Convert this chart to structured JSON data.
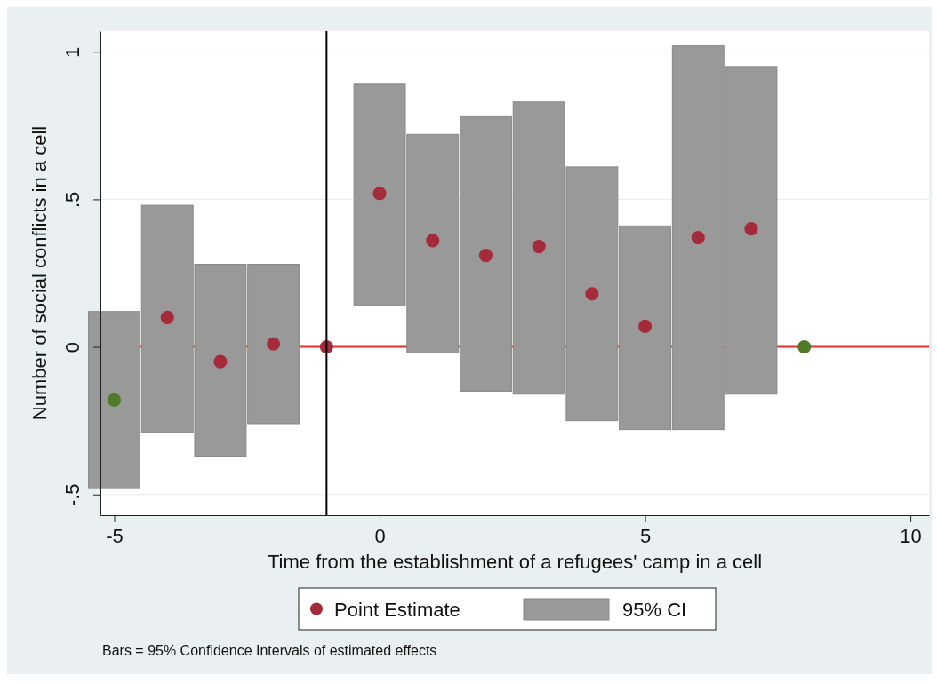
{
  "chart_data": {
    "type": "bar",
    "xlabel": "Time from the establishment of a refugees' camp in a cell",
    "ylabel": "Number of social conflicts in a cell",
    "xlim": [
      -5.26,
      10.35
    ],
    "xticks": [
      -5,
      0,
      5,
      10
    ],
    "ylim": [
      -0.57,
      1.07
    ],
    "yticks": [
      {
        "value": -0.5,
        "label": "-.5"
      },
      0,
      {
        "value": 0.5,
        "label": ".5"
      },
      1
    ],
    "grid": "y",
    "legend": "bottom",
    "marker": "circle",
    "series": [
      {
        "name": "95% CI",
        "color": "#999999",
        "x": [
          -5,
          -4,
          -3,
          -2,
          0,
          1,
          2,
          3,
          4,
          5,
          6,
          7
        ],
        "base": [
          -0.48,
          -0.29,
          -0.37,
          -0.26,
          0.14,
          -0.02,
          -0.15,
          -0.16,
          -0.25,
          -0.28,
          -0.28,
          -0.16
        ],
        "values": [
          0.6,
          0.77,
          0.65,
          0.54,
          0.75,
          0.74,
          0.93,
          0.99,
          0.86,
          0.69,
          1.3,
          1.11
        ]
      },
      {
        "type": "scatter",
        "name": "Point Estimate",
        "color": "#a52a3a",
        "x": [
          -5,
          -4,
          -3,
          -2,
          -1,
          0,
          1,
          2,
          3,
          4,
          5,
          6,
          7,
          8
        ],
        "values": [
          -0.18,
          0.1,
          -0.05,
          0.01,
          0,
          0.52,
          0.36,
          0.31,
          0.34,
          0.18,
          0.07,
          0.37,
          0.4,
          0
        ],
        "colors": [
          "#4f7a28",
          "#a52a3a",
          "#a52a3a",
          "#a52a3a",
          "#a52a3a",
          "#a52a3a",
          "#a52a3a",
          "#a52a3a",
          "#a52a3a",
          "#a52a3a",
          "#a52a3a",
          "#a52a3a",
          "#a52a3a",
          "#4f7a28"
        ]
      }
    ],
    "ref_lines": [
      {
        "axis": "y",
        "value": 0,
        "color": "#e0302a"
      },
      {
        "axis": "x",
        "value": -1,
        "color": "#000000"
      }
    ],
    "annotations": [
      "Bars = 95% Confidence Intervals of estimated effects"
    ]
  }
}
